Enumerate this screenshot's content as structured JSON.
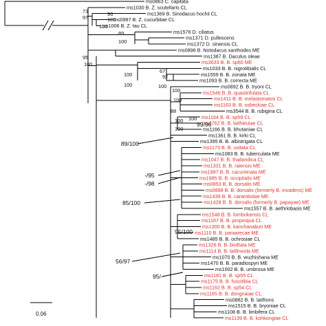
{
  "colors": {
    "branch": "#000000",
    "highlight": "#e0312a",
    "normal": "#111111"
  },
  "scale_bar": {
    "label": "0.06"
  },
  "tips": [
    {
      "id": "t1",
      "text": "ms0863 C. capitata",
      "color": "black"
    },
    {
      "id": "t2",
      "text": "ms1030 B. Z. scutellaris CL",
      "color": "black"
    },
    {
      "id": "t3",
      "text": "ms1369 B. Sinodacus hochii CL",
      "color": "black"
    },
    {
      "id": "t4",
      "text": "ms0987 B. Z. cucurbitae CL",
      "color": "black"
    },
    {
      "id": "t5",
      "text": "ms1006 B. Z. tau CL",
      "color": "black"
    },
    {
      "id": "t6",
      "text": "ms1576 D. ciliatus",
      "color": "black"
    },
    {
      "id": "t7",
      "text": "ms1371 D. pullescens",
      "color": "black"
    },
    {
      "id": "t8",
      "text": "ms1372 D. sinensis CL",
      "color": "black"
    },
    {
      "id": "t9",
      "text": "ms0896 B. Notodacus xanthodes ME",
      "color": "black"
    },
    {
      "id": "t10",
      "text": "ms1387 B. Daculus oleae",
      "color": "black"
    },
    {
      "id": "t11",
      "text": "ms3633 B. B. sp60 ME",
      "color": "red"
    },
    {
      "id": "t12",
      "text": "ms1033 B. B. nigrotibialis CL",
      "color": "black"
    },
    {
      "id": "t13",
      "text": "ms1559 B. B. zonata ME",
      "color": "black"
    },
    {
      "id": "t14",
      "text": "ms1093 B. B. correcta ME",
      "color": "black"
    },
    {
      "id": "t15",
      "text": "ms0892 B. B. tryoni CL",
      "color": "black"
    },
    {
      "id": "t16",
      "text": "ms1546 B. B. quasiinfulata CL",
      "color": "red"
    },
    {
      "id": "t17",
      "text": "ms1411 B. B. melastomatos CL",
      "color": "red"
    },
    {
      "id": "t18",
      "text": "ms1163 B. B. osbeckiae CL",
      "color": "red"
    },
    {
      "id": "t19",
      "text": "ms3544 B. B. rubigina CL",
      "color": "black"
    },
    {
      "id": "t20",
      "text": "ms1164 B. B. sp59 CL",
      "color": "red"
    },
    {
      "id": "t21",
      "text": "ms3762 B. B. laithieuiae CL",
      "color": "red"
    },
    {
      "id": "t22",
      "text": "ms1166 B. B. bhutaniae CL",
      "color": "black"
    },
    {
      "id": "t23",
      "text": "ms1361 B. B. kirki CL",
      "color": "black"
    },
    {
      "id": "t24",
      "text": "ms1395 B. B. albistrigata CL",
      "color": "black"
    },
    {
      "id": "t25",
      "text": "ms1173 B. B. usitata CL",
      "color": "red"
    },
    {
      "id": "t26",
      "text": "ms1083 B. B. tuberculata ME",
      "color": "black"
    },
    {
      "id": "t27",
      "text": "ms1047 B. B. thailandica CL",
      "color": "red"
    },
    {
      "id": "t28",
      "text": "ms1331 B. B. raiensis ME",
      "color": "red"
    },
    {
      "id": "t29",
      "text": "ms1997 B. B. cacuminata ME",
      "color": "red"
    },
    {
      "id": "t30",
      "text": "ms1985 B. B. occipitalis ME",
      "color": "red"
    },
    {
      "id": "t31",
      "text": "ms0853 B. B. dorsalis ME",
      "color": "red"
    },
    {
      "id": "t32",
      "text": "ms0898 B. B. dorsalis (formerly B. invadens) ME",
      "color": "red"
    },
    {
      "id": "t33",
      "text": "ms1439 B. B. carambolae ME",
      "color": "red"
    },
    {
      "id": "t34",
      "text": "ms1428 B. B. dorsalis (formerly B. papayae) ME",
      "color": "red"
    },
    {
      "id": "t35",
      "text": "ms1557 B. B. aethriobasis ME",
      "color": "black"
    },
    {
      "id": "t36",
      "text": "ms1548 B. B. lombokensis CL",
      "color": "red"
    },
    {
      "id": "t37",
      "text": "ms1167 B. B. propinqua CL",
      "color": "red"
    },
    {
      "id": "t38",
      "text": "ms1300 B. B. kanchanaburi ME",
      "color": "red"
    },
    {
      "id": "t39",
      "text": "ms1110 B. B. paraarecae ME",
      "color": "red"
    },
    {
      "id": "t40",
      "text": "ms1485 B. B. ochrosiae CL",
      "color": "black"
    },
    {
      "id": "t41",
      "text": "ms1326 B. B. bivittata ME",
      "color": "red"
    },
    {
      "id": "t42",
      "text": "ms1114 B. B. latilineola ME",
      "color": "red"
    },
    {
      "id": "t43",
      "text": "ms1070 B. B. wuzhishana ME",
      "color": "black"
    },
    {
      "id": "t44",
      "text": "ms1470 B. B. paradiospyri ME",
      "color": "black"
    },
    {
      "id": "t45",
      "text": "ms1002 B. B. umbrosa ME",
      "color": "black"
    },
    {
      "id": "t46",
      "text": "ms1181 B. B. sp55 CL",
      "color": "red"
    },
    {
      "id": "t47",
      "text": "ms1175 B. B. fuscitibia CL",
      "color": "red"
    },
    {
      "id": "t48",
      "text": "ms1162 B. B. sp54 CL",
      "color": "red"
    },
    {
      "id": "t49",
      "text": "ms1165 B. B. dongnaiae CL",
      "color": "red"
    },
    {
      "id": "t50",
      "text": "ms0882 B. B. latifrons",
      "color": "black"
    },
    {
      "id": "t51",
      "text": "ms1515 B. B. bryoniae CL",
      "color": "black"
    },
    {
      "id": "t52",
      "text": "ms1108 B. B. limbifera CL",
      "color": "black"
    },
    {
      "id": "t53",
      "text": "ms1139 B. B. kohkongiae CL",
      "color": "red"
    }
  ],
  "supports": [
    {
      "id": "s1",
      "text": "73"
    },
    {
      "id": "s2",
      "text": "97"
    },
    {
      "id": "s3",
      "text": "96"
    },
    {
      "id": "s4",
      "text": "100"
    },
    {
      "id": "s5",
      "text": "100"
    },
    {
      "id": "s6",
      "text": "89"
    },
    {
      "id": "s7",
      "text": "100"
    },
    {
      "id": "s8",
      "text": "95"
    },
    {
      "id": "s9",
      "text": "100"
    },
    {
      "id": "s10",
      "text": "100"
    },
    {
      "id": "s11",
      "text": "100"
    },
    {
      "id": "s12",
      "text": "67"
    },
    {
      "id": "s13",
      "text": "92"
    },
    {
      "id": "s14",
      "text": "100"
    },
    {
      "id": "s15",
      "text": "100"
    },
    {
      "id": "s16",
      "text": "100"
    },
    {
      "id": "s17",
      "text": "100"
    },
    {
      "id": "s18",
      "text": "99/96"
    },
    {
      "id": "s19",
      "text": "88"
    },
    {
      "id": "s20",
      "text": "100"
    },
    {
      "id": "s21",
      "text": "100"
    },
    {
      "id": "s22",
      "text": "89/100"
    },
    {
      "id": "s23",
      "text": "-/95"
    },
    {
      "id": "s24",
      "text": "-/98"
    },
    {
      "id": "s25",
      "text": "85/100"
    },
    {
      "id": "s26",
      "text": "95/100"
    },
    {
      "id": "s27",
      "text": "56/97"
    },
    {
      "id": "s28",
      "text": "95/-"
    }
  ]
}
